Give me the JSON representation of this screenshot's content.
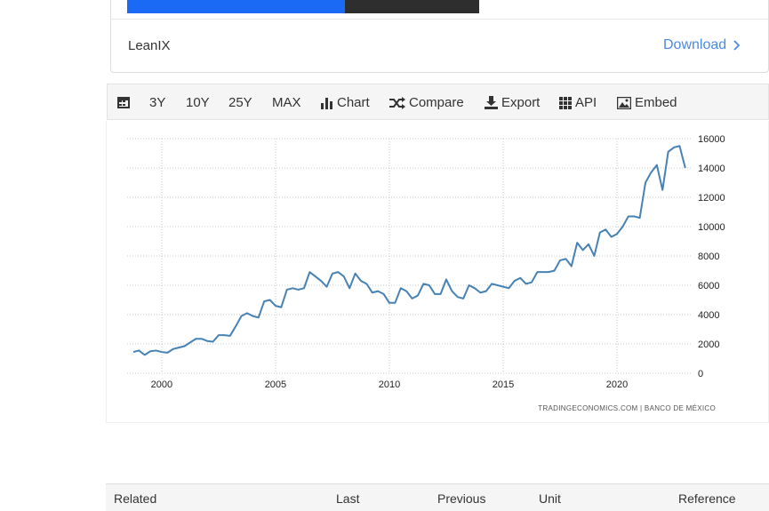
{
  "card": {
    "vendor": "LeanIX",
    "action": "Download"
  },
  "toolbar": {
    "buttons": [
      "3Y",
      "10Y",
      "25Y",
      "MAX",
      "Chart",
      "Compare",
      "Export",
      "API",
      "Embed"
    ]
  },
  "chart_data": {
    "type": "line",
    "x": [
      1998.75,
      1999,
      1999.25,
      1999.5,
      1999.75,
      2000,
      2000.25,
      2000.5,
      2000.75,
      2001,
      2001.25,
      2001.5,
      2001.75,
      2002,
      2002.25,
      2002.5,
      2002.75,
      2003,
      2003.25,
      2003.5,
      2003.75,
      2004,
      2004.25,
      2004.5,
      2004.75,
      2005,
      2005.25,
      2005.5,
      2005.75,
      2006,
      2006.25,
      2006.5,
      2006.75,
      2007,
      2007.25,
      2007.5,
      2007.75,
      2008,
      2008.25,
      2008.5,
      2008.75,
      2009,
      2009.25,
      2009.5,
      2009.75,
      2010,
      2010.25,
      2010.5,
      2010.75,
      2011,
      2011.25,
      2011.5,
      2011.75,
      2012,
      2012.25,
      2012.5,
      2012.75,
      2013,
      2013.25,
      2013.5,
      2013.75,
      2014,
      2014.25,
      2014.5,
      2014.75,
      2015,
      2015.25,
      2015.5,
      2015.75,
      2016,
      2016.25,
      2016.5,
      2016.75,
      2017,
      2017.25,
      2017.5,
      2017.75,
      2018,
      2018.25,
      2018.5,
      2018.75,
      2019,
      2019.25,
      2019.5,
      2019.75,
      2020,
      2020.25,
      2020.5,
      2020.75,
      2021,
      2021.25,
      2021.5,
      2021.75,
      2022,
      2022.25,
      2022.5,
      2022.75,
      2023
    ],
    "series": [
      {
        "color": "#4682b4",
        "values": [
          1450,
          1550,
          1250,
          1500,
          1550,
          1450,
          1400,
          1650,
          1750,
          1850,
          2100,
          2350,
          2350,
          2200,
          2150,
          2600,
          2600,
          2550,
          3200,
          3900,
          4100,
          3900,
          3800,
          4900,
          5000,
          4600,
          4500,
          5700,
          5800,
          5700,
          5800,
          6900,
          6600,
          6300,
          5900,
          6800,
          6900,
          6600,
          5800,
          6800,
          6300,
          6100,
          5500,
          5600,
          5400,
          4800,
          4800,
          5800,
          5600,
          5100,
          5300,
          6100,
          6000,
          5400,
          5400,
          6400,
          5600,
          5200,
          5100,
          6000,
          5800,
          5500,
          5600,
          6100,
          6000,
          5900,
          5800,
          6300,
          6500,
          6100,
          6200,
          6900,
          6900,
          6900,
          7000,
          7700,
          7800,
          7300,
          8900,
          8400,
          8800,
          8000,
          9600,
          9800,
          9300,
          9500,
          10000,
          10700,
          10700,
          10600,
          13000,
          13700,
          14200,
          12500,
          15100,
          15400,
          15500,
          14000
        ]
      }
    ],
    "xlim": [
      1998.48,
      2023.28
    ],
    "xticks": [
      2000,
      2005,
      2010,
      2015,
      2020
    ],
    "ylim": [
      0,
      16000
    ],
    "yticks": [
      0,
      2000,
      4000,
      6000,
      8000,
      10000,
      12000,
      14000,
      16000
    ],
    "grid": true,
    "source": "TRADINGECONOMICS.COM | BANCO DE MÉXICO"
  },
  "table": {
    "headers": [
      "Related",
      "Last",
      "Previous",
      "Unit",
      "Reference"
    ]
  }
}
